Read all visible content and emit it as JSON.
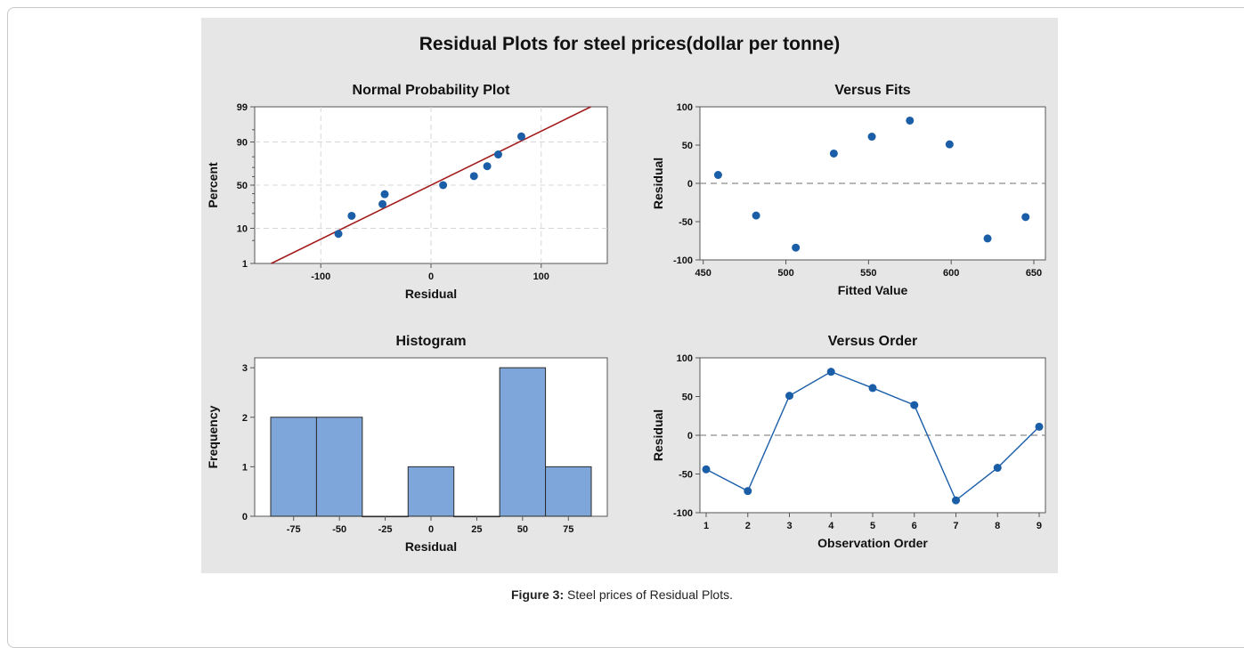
{
  "figure": {
    "title": "Residual Plots for steel prices(dollar per tonne)",
    "caption_label": "Figure 3:",
    "caption_text": " Steel prices of Residual Plots."
  },
  "colors": {
    "panel_bg": "#e6e6e6",
    "plot_bg": "#ffffff",
    "point": "#1b5ea8",
    "fit_line": "#a31c1c",
    "bar_fill": "#7ea6da",
    "bar_stroke": "#2b2b2b",
    "ref_line": "#8c8c8c",
    "grid": "#d7d7d7"
  },
  "chart_data": [
    {
      "type": "scatter",
      "title": "Normal Probability Plot",
      "xlabel": "Residual",
      "ylabel": "Percent",
      "xlim": [
        -160,
        160
      ],
      "xticks": [
        -100,
        0,
        100
      ],
      "yticks": [
        1,
        10,
        50,
        90,
        99
      ],
      "yscale": "normal-probability",
      "grid": true,
      "fit_line": {
        "from": [
          -145,
          1
        ],
        "to": [
          145,
          99
        ]
      },
      "points": [
        {
          "x": -84,
          "y": 7.4
        },
        {
          "x": -72,
          "y": 18.1
        },
        {
          "x": -44,
          "y": 28.7
        },
        {
          "x": -42,
          "y": 39.4
        },
        {
          "x": 11,
          "y": 50
        },
        {
          "x": 39,
          "y": 60.6
        },
        {
          "x": 51,
          "y": 71.3
        },
        {
          "x": 61,
          "y": 81.9
        },
        {
          "x": 82,
          "y": 92.6
        }
      ]
    },
    {
      "type": "scatter",
      "title": "Versus Fits",
      "xlabel": "Fitted Value",
      "ylabel": "Residual",
      "xlim": [
        448,
        657
      ],
      "ylim": [
        -100,
        100
      ],
      "xticks": [
        450,
        500,
        550,
        600,
        650
      ],
      "yticks": [
        -100,
        -50,
        0,
        50,
        100
      ],
      "reference_line": 0,
      "points": [
        {
          "x": 459,
          "y": 11
        },
        {
          "x": 482,
          "y": -42
        },
        {
          "x": 506,
          "y": -84
        },
        {
          "x": 529,
          "y": 39
        },
        {
          "x": 552,
          "y": 61
        },
        {
          "x": 575,
          "y": 82
        },
        {
          "x": 599,
          "y": 51
        },
        {
          "x": 622,
          "y": -72
        },
        {
          "x": 645,
          "y": -44
        }
      ]
    },
    {
      "type": "bar",
      "title": "Histogram",
      "xlabel": "Residual",
      "ylabel": "Frequency",
      "categories": [
        "-75",
        "-50",
        "-25",
        "0",
        "25",
        "50",
        "75"
      ],
      "values": [
        2,
        2,
        0,
        1,
        0,
        3,
        1
      ],
      "ylim": [
        0,
        3.2
      ],
      "yticks": [
        0,
        1,
        2,
        3
      ]
    },
    {
      "type": "line",
      "title": "Versus Order",
      "xlabel": "Observation Order",
      "ylabel": "Residual",
      "x": [
        1,
        2,
        3,
        4,
        5,
        6,
        7,
        8,
        9
      ],
      "y": [
        -44,
        -72,
        51,
        82,
        61,
        39,
        -84,
        -42,
        11
      ],
      "xlim": [
        0.85,
        9.15
      ],
      "ylim": [
        -100,
        100
      ],
      "xticks": [
        1,
        2,
        3,
        4,
        5,
        6,
        7,
        8,
        9
      ],
      "yticks": [
        -100,
        -50,
        0,
        50,
        100
      ],
      "reference_line": 0
    }
  ]
}
